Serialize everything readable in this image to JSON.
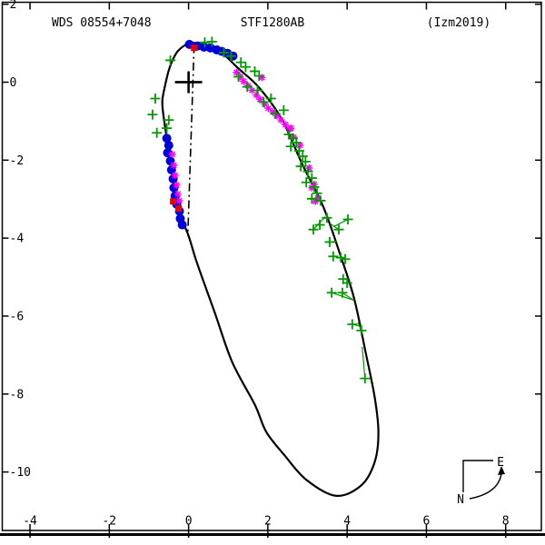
{
  "header": {
    "wds_id": "WDS 08554+7048",
    "system_name": "STF1280AB",
    "reference": "(Izm2019)"
  },
  "compass": {
    "north_label": "N",
    "east_label": "E"
  },
  "colors": {
    "background": "#ffffff",
    "frame": "#000000",
    "orbit": "#000000",
    "blue_marker": "#0000dd",
    "red_marker": "#ee0000",
    "magenta_marker": "#ff00ff",
    "green_marker": "#009900"
  },
  "chart_data": {
    "type": "scatter",
    "title": "STF1280AB",
    "xlabel": "",
    "ylabel": "",
    "grid": false,
    "legend_position": "none",
    "x_ticks": [
      -4,
      -2,
      0,
      2,
      4,
      6,
      8
    ],
    "y_ticks": [
      2,
      0,
      -2,
      -4,
      -6,
      -8,
      -10
    ],
    "xlim": [
      -4.7,
      8.9
    ],
    "ylim": [
      -11.5,
      2.05
    ],
    "primary_star": [
      0,
      0
    ],
    "line_of_nodes": [
      [
        0.14,
        0.95
      ],
      [
        -0.02,
        -3.94
      ]
    ],
    "orbit_curve": [
      [
        0.09,
        1.02
      ],
      [
        0.75,
        0.81
      ],
      [
        1.26,
        0.35
      ],
      [
        1.78,
        -0.14
      ],
      [
        2.35,
        -0.95
      ],
      [
        2.88,
        -2.13
      ],
      [
        3.4,
        -3.2
      ],
      [
        3.84,
        -4.47
      ],
      [
        4.18,
        -5.56
      ],
      [
        4.47,
        -6.95
      ],
      [
        4.7,
        -8.11
      ],
      [
        4.79,
        -8.99
      ],
      [
        4.7,
        -9.73
      ],
      [
        4.36,
        -10.34
      ],
      [
        3.72,
        -10.61
      ],
      [
        2.97,
        -10.2
      ],
      [
        2.42,
        -9.57
      ],
      [
        1.96,
        -8.97
      ],
      [
        1.67,
        -8.27
      ],
      [
        1.1,
        -7.18
      ],
      [
        0.66,
        -5.91
      ],
      [
        0.21,
        -4.63
      ],
      [
        0.0,
        -3.94
      ],
      [
        -0.21,
        -3.41
      ],
      [
        -0.34,
        -2.78
      ],
      [
        -0.46,
        -2.09
      ],
      [
        -0.55,
        -1.44
      ],
      [
        -0.64,
        -0.81
      ],
      [
        -0.66,
        -0.46
      ],
      [
        -0.59,
        -0.07
      ],
      [
        -0.48,
        0.37
      ],
      [
        -0.3,
        0.76
      ],
      [
        -0.09,
        0.95
      ]
    ],
    "series": [
      {
        "name": "blue-filled-circles",
        "marker": "circle",
        "color": "#0000dd",
        "points": [
          [
            0.02,
            0.97
          ],
          [
            0.23,
            0.93
          ],
          [
            0.39,
            0.9
          ],
          [
            0.55,
            0.88
          ],
          [
            0.71,
            0.83
          ],
          [
            0.84,
            0.79
          ],
          [
            0.98,
            0.74
          ],
          [
            1.12,
            0.67
          ],
          [
            -0.55,
            -1.44
          ],
          [
            -0.5,
            -1.62
          ],
          [
            -0.53,
            -1.81
          ],
          [
            -0.46,
            -2.02
          ],
          [
            -0.43,
            -2.25
          ],
          [
            -0.39,
            -2.48
          ],
          [
            -0.37,
            -2.71
          ],
          [
            -0.34,
            -2.92
          ],
          [
            -0.3,
            -3.13
          ],
          [
            -0.23,
            -3.31
          ],
          [
            -0.21,
            -3.5
          ],
          [
            -0.16,
            -3.66
          ]
        ]
      },
      {
        "name": "red-filled-squares",
        "marker": "square",
        "color": "#ee0000",
        "points": [
          [
            0.14,
            0.88
          ],
          [
            -0.39,
            -3.06
          ],
          [
            -0.25,
            -3.24
          ]
        ]
      },
      {
        "name": "magenta-asterisks",
        "marker": "asterisk",
        "color": "#ff00ff",
        "points": [
          [
            1.21,
            0.25
          ],
          [
            1.3,
            0.14
          ],
          [
            1.39,
            0.02
          ],
          [
            1.5,
            -0.09
          ],
          [
            1.6,
            -0.21
          ],
          [
            1.71,
            -0.33
          ],
          [
            1.8,
            -0.44
          ],
          [
            1.92,
            -0.56
          ],
          [
            2.01,
            -0.67
          ],
          [
            2.12,
            -0.76
          ],
          [
            2.22,
            -0.86
          ],
          [
            2.33,
            -0.97
          ],
          [
            2.44,
            -1.09
          ],
          [
            2.55,
            -1.2
          ],
          [
            1.85,
            0.12
          ],
          [
            2.58,
            -1.18
          ],
          [
            2.65,
            -1.41
          ],
          [
            2.81,
            -1.62
          ],
          [
            3.04,
            -2.2
          ],
          [
            3.17,
            -2.62
          ],
          [
            3.11,
            -2.71
          ],
          [
            3.26,
            -2.97
          ],
          [
            3.2,
            -3.06
          ],
          [
            -0.41,
            -1.85
          ],
          [
            -0.37,
            -2.13
          ],
          [
            -0.34,
            -2.39
          ],
          [
            -0.3,
            -2.64
          ],
          [
            -0.27,
            -2.87
          ],
          [
            -0.23,
            -3.04
          ]
        ]
      },
      {
        "name": "green-plus-crosses",
        "marker": "plus",
        "color": "#009900",
        "points": [
          [
            -0.46,
            0.56
          ],
          [
            0.41,
            1.02
          ],
          [
            0.59,
            1.04
          ],
          [
            0.89,
            0.76
          ],
          [
            1.07,
            0.67
          ],
          [
            1.32,
            0.51
          ],
          [
            1.44,
            0.39
          ],
          [
            1.67,
            0.28
          ],
          [
            1.78,
            0.16
          ],
          [
            1.26,
            0.14
          ],
          [
            1.48,
            -0.12
          ],
          [
            1.74,
            -0.21
          ],
          [
            1.89,
            -0.51
          ],
          [
            2.08,
            -0.42
          ],
          [
            2.19,
            -0.81
          ],
          [
            2.4,
            -0.72
          ],
          [
            2.53,
            -1.34
          ],
          [
            2.63,
            -1.44
          ],
          [
            2.72,
            -1.55
          ],
          [
            2.58,
            -1.65
          ],
          [
            2.79,
            -1.76
          ],
          [
            2.88,
            -1.9
          ],
          [
            2.95,
            -2.04
          ],
          [
            2.83,
            -2.16
          ],
          [
            3.01,
            -2.29
          ],
          [
            3.11,
            -2.46
          ],
          [
            2.97,
            -2.57
          ],
          [
            3.17,
            -2.69
          ],
          [
            3.24,
            -2.85
          ],
          [
            3.11,
            -2.99
          ],
          [
            3.33,
            -3.04
          ],
          [
            3.31,
            -3.66
          ],
          [
            3.15,
            -3.78
          ],
          [
            3.49,
            -3.48
          ],
          [
            3.79,
            -3.78
          ],
          [
            4.02,
            -3.52
          ],
          [
            3.56,
            -4.1
          ],
          [
            3.65,
            -4.47
          ],
          [
            3.84,
            -4.5
          ],
          [
            3.95,
            -4.54
          ],
          [
            3.9,
            -5.05
          ],
          [
            4.0,
            -5.15
          ],
          [
            3.61,
            -5.4
          ],
          [
            3.88,
            -5.4
          ],
          [
            4.13,
            -6.21
          ],
          [
            4.36,
            -6.37
          ],
          [
            4.45,
            -7.6
          ],
          [
            -0.84,
            -0.42
          ],
          [
            -0.91,
            -0.83
          ],
          [
            -0.8,
            -1.3
          ],
          [
            -0.5,
            -0.97
          ],
          [
            -0.55,
            -1.18
          ]
        ]
      }
    ],
    "residual_segments": [
      [
        [
          4.02,
          -3.52
        ],
        [
          3.65,
          -3.71
        ]
      ],
      [
        [
          3.15,
          -3.78
        ],
        [
          3.45,
          -3.45
        ]
      ],
      [
        [
          3.61,
          -5.4
        ],
        [
          4.16,
          -5.59
        ]
      ],
      [
        [
          3.88,
          -5.4
        ],
        [
          4.16,
          -5.59
        ]
      ],
      [
        [
          4.13,
          -6.21
        ],
        [
          4.32,
          -6.26
        ]
      ],
      [
        [
          4.36,
          -6.37
        ],
        [
          4.27,
          -6.16
        ]
      ],
      [
        [
          4.45,
          -7.6
        ],
        [
          4.38,
          -6.79
        ]
      ],
      [
        [
          3.79,
          -3.78
        ],
        [
          3.56,
          -3.62
        ]
      ],
      [
        [
          3.56,
          -4.1
        ],
        [
          3.74,
          -4.08
        ]
      ]
    ]
  }
}
